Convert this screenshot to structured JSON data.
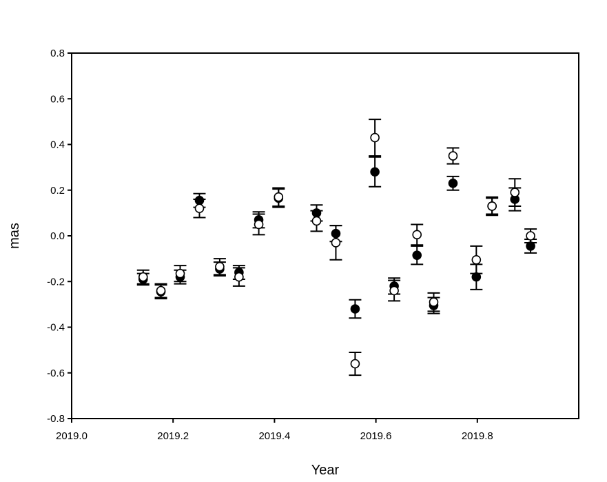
{
  "chart_data": {
    "type": "scatter",
    "title": "",
    "xlabel": "Year",
    "ylabel": "mas",
    "xlim": [
      2019.0,
      2020.0
    ],
    "ylim": [
      -0.8,
      0.8
    ],
    "xticks": [
      "2019.0",
      "2019.2",
      "2019.4",
      "2019.6",
      "2019.8"
    ],
    "xtick_values": [
      2019.0,
      2019.2,
      2019.4,
      2019.6,
      2019.8
    ],
    "yticks": [
      "-0.8",
      "-0.6",
      "-0.4",
      "-0.2",
      "0.0",
      "0.2",
      "0.4",
      "0.6",
      "0.8"
    ],
    "ytick_values": [
      -0.8,
      -0.6,
      -0.4,
      -0.2,
      0.0,
      0.2,
      0.4,
      0.6,
      0.8
    ],
    "grid": false,
    "legend": "none",
    "x": [
      2019.141,
      2019.176,
      2019.214,
      2019.252,
      2019.292,
      2019.33,
      2019.369,
      2019.408,
      2019.483,
      2019.521,
      2019.559,
      2019.598,
      2019.636,
      2019.681,
      2019.714,
      2019.752,
      2019.798,
      2019.829,
      2019.874,
      2019.905
    ],
    "series": [
      {
        "marker": "filled-circle",
        "color": "#000000",
        "values": [
          -0.19,
          -0.245,
          -0.18,
          0.155,
          -0.145,
          -0.16,
          0.07,
          0.165,
          0.1,
          0.01,
          -0.32,
          0.28,
          -0.22,
          -0.085,
          -0.305,
          0.23,
          -0.18,
          0.13,
          0.16,
          -0.045
        ],
        "errors": [
          0.025,
          0.03,
          0.03,
          0.03,
          0.03,
          0.03,
          0.035,
          0.04,
          0.035,
          0.035,
          0.04,
          0.065,
          0.035,
          0.04,
          0.035,
          0.03,
          0.055,
          0.035,
          0.05,
          0.03
        ]
      },
      {
        "marker": "open-circle",
        "color": "#000000",
        "values": [
          -0.18,
          -0.24,
          -0.165,
          0.12,
          -0.135,
          -0.18,
          0.05,
          0.17,
          0.065,
          -0.03,
          -0.56,
          0.43,
          -0.24,
          0.005,
          -0.29,
          0.35,
          -0.105,
          0.13,
          0.19,
          0.0
        ],
        "errors": [
          0.03,
          0.03,
          0.035,
          0.04,
          0.035,
          0.04,
          0.045,
          0.04,
          0.045,
          0.075,
          0.05,
          0.08,
          0.045,
          0.045,
          0.04,
          0.035,
          0.06,
          0.04,
          0.06,
          0.03
        ]
      }
    ]
  }
}
